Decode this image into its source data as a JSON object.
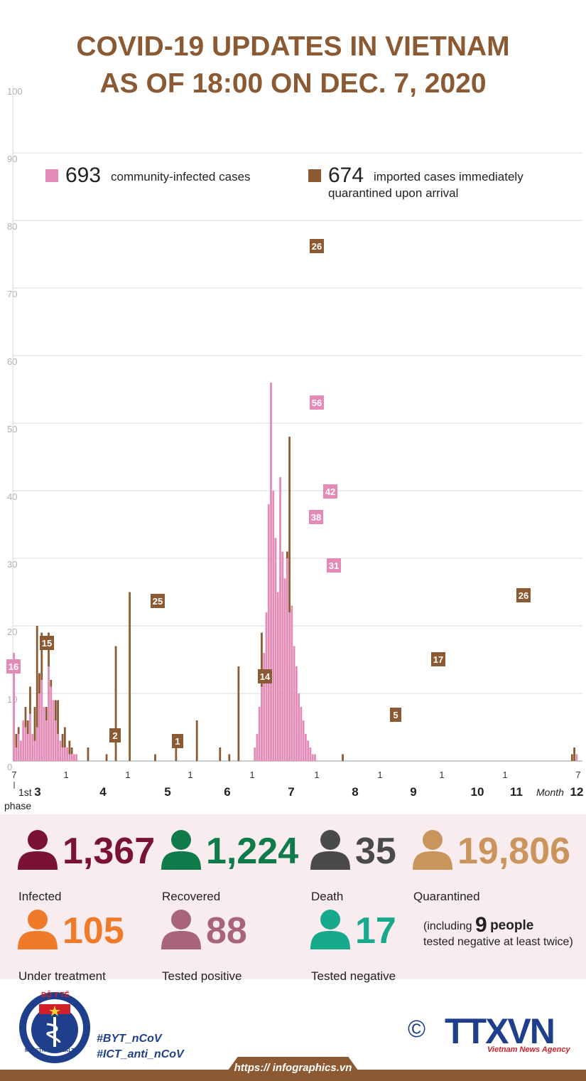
{
  "title_line1": "COVID-19 UPDATES IN VIETNAM",
  "title_line2": "AS OF 18:00 ON DEC. 7, 2020",
  "colors": {
    "community": "#e48ab7",
    "imported": "#8b5a33",
    "title": "#8b5a33"
  },
  "chart_data": {
    "type": "bar",
    "ylim": [
      0,
      100
    ],
    "yticks": [
      "0",
      "10",
      "20",
      "30",
      "40",
      "50",
      "60",
      "70",
      "80",
      "90",
      "100"
    ],
    "legend": [
      {
        "count": "693",
        "text": "community-infected cases",
        "color": "#e48ab7"
      },
      {
        "count": "674",
        "text_line1": "imported cases immediately",
        "text_line2": "quarantined upon arrival",
        "color": "#8b5a33"
      }
    ],
    "day_ticks": [
      "7",
      "1",
      "1",
      "1",
      "1",
      "1",
      "1",
      "1",
      "1",
      "7"
    ],
    "months": [
      "3",
      "4",
      "5",
      "6",
      "7",
      "8",
      "9",
      "10",
      "11",
      "12"
    ],
    "first_phase_line1": "1st",
    "first_phase_line2": "phase",
    "month_label": "Month",
    "annotations": [
      {
        "label": "16",
        "series": "community"
      },
      {
        "label": "15",
        "series": "imported"
      },
      {
        "label": "2",
        "series": "imported"
      },
      {
        "label": "25",
        "series": "imported"
      },
      {
        "label": "1",
        "series": "imported"
      },
      {
        "label": "14",
        "series": "imported"
      },
      {
        "label": "26",
        "series": "imported"
      },
      {
        "label": "56",
        "series": "community"
      },
      {
        "label": "42",
        "series": "community"
      },
      {
        "label": "38",
        "series": "community"
      },
      {
        "label": "31",
        "series": "community"
      },
      {
        "label": "5",
        "series": "imported"
      },
      {
        "label": "17",
        "series": "imported"
      },
      {
        "label": "26",
        "series": "imported"
      }
    ],
    "series": [
      {
        "name": "community-infected cases",
        "color": "#e48ab7",
        "values": [
          16,
          2,
          4,
          3,
          6,
          5,
          4,
          7,
          4,
          3,
          5,
          10,
          12,
          8,
          6,
          14,
          11,
          9,
          6,
          4,
          3,
          2,
          2,
          2,
          1,
          1,
          1,
          1,
          0,
          0,
          0,
          0,
          0,
          0,
          0,
          0,
          0,
          0,
          0,
          0,
          0,
          0,
          0,
          0,
          0,
          0,
          0,
          0,
          0,
          0,
          0,
          0,
          0,
          0,
          0,
          0,
          0,
          0,
          0,
          0,
          0,
          0,
          0,
          0,
          0,
          0,
          0,
          0,
          0,
          0,
          0,
          0,
          0,
          0,
          0,
          0,
          0,
          0,
          0,
          0,
          0,
          0,
          0,
          0,
          0,
          0,
          0,
          0,
          0,
          0,
          0,
          0,
          0,
          0,
          0,
          0,
          0,
          0,
          0,
          0,
          0,
          0,
          0,
          0,
          2,
          4,
          8,
          11,
          16,
          22,
          38,
          56,
          40,
          33,
          25,
          42,
          31,
          27,
          30,
          22,
          23,
          17,
          14,
          10,
          8,
          6,
          4,
          3,
          2,
          1,
          1,
          0,
          0,
          0,
          0,
          0,
          0,
          0,
          0,
          0,
          0,
          0,
          0,
          0,
          0,
          0,
          0,
          0,
          0,
          0,
          0,
          0,
          0,
          0,
          0,
          0,
          0,
          0,
          0,
          0,
          0,
          0,
          0,
          0,
          0,
          0,
          0,
          0,
          0,
          0,
          0,
          0,
          0,
          0,
          0,
          0,
          0,
          0,
          0,
          0,
          0,
          0,
          0,
          0,
          0,
          0,
          0,
          0,
          0,
          0,
          0,
          0,
          0,
          0,
          0,
          0,
          0,
          0,
          0,
          0,
          0,
          0,
          0,
          0,
          0,
          0,
          0,
          0,
          0,
          0,
          0,
          0,
          0,
          0,
          0,
          0,
          0,
          0,
          0,
          0,
          0,
          0,
          0,
          0,
          0,
          0,
          0,
          0,
          0,
          0,
          0,
          0,
          0,
          0,
          0,
          0,
          0,
          0,
          0,
          0,
          0,
          0,
          0,
          1,
          0,
          0
        ]
      },
      {
        "name": "imported cases immediately quarantined upon arrival",
        "color": "#8b5a33",
        "values": [
          0,
          2,
          1,
          0,
          0,
          3,
          2,
          4,
          0,
          5,
          15,
          3,
          7,
          0,
          2,
          5,
          1,
          0,
          3,
          5,
          0,
          2,
          3,
          0,
          2,
          1,
          0,
          0,
          0,
          0,
          0,
          0,
          2,
          0,
          0,
          0,
          0,
          0,
          0,
          0,
          1,
          0,
          0,
          0,
          17,
          0,
          0,
          0,
          0,
          0,
          25,
          0,
          0,
          0,
          0,
          0,
          0,
          0,
          0,
          0,
          0,
          1,
          0,
          0,
          0,
          0,
          0,
          0,
          0,
          0,
          3,
          0,
          0,
          0,
          0,
          0,
          0,
          0,
          0,
          6,
          0,
          0,
          0,
          0,
          0,
          0,
          0,
          0,
          0,
          2,
          0,
          0,
          0,
          1,
          0,
          0,
          0,
          14,
          0,
          0,
          0,
          0,
          0,
          0,
          0,
          0,
          0,
          8,
          0,
          0,
          0,
          0,
          0,
          0,
          0,
          0,
          0,
          0,
          1,
          26,
          0,
          0,
          0,
          0,
          0,
          0,
          0,
          0,
          0,
          0,
          0,
          0,
          0,
          0,
          0,
          0,
          0,
          0,
          0,
          0,
          0,
          0,
          1,
          0,
          0,
          0,
          0,
          0,
          0,
          0,
          0,
          0,
          0,
          0,
          0,
          0,
          0,
          0,
          0,
          0,
          0,
          0,
          0,
          0,
          0,
          0,
          0,
          0,
          0,
          0,
          0,
          0,
          0,
          0,
          0,
          0,
          0,
          0,
          0,
          0,
          0,
          0,
          0,
          0,
          0,
          0,
          0,
          0,
          0,
          0,
          0,
          0,
          0,
          0,
          0,
          0,
          0,
          0,
          0,
          0,
          0,
          0,
          0,
          0,
          0,
          0,
          0,
          0,
          0,
          0,
          0,
          0,
          0,
          0,
          0,
          0,
          0,
          0,
          0,
          0,
          0,
          0,
          0,
          0,
          0,
          0,
          0,
          0,
          0,
          0,
          0,
          0,
          0,
          0,
          0,
          0,
          0,
          0,
          0,
          0,
          0,
          1,
          2
        ]
      }
    ]
  },
  "stats": [
    {
      "value": "1,367",
      "label": "Infected",
      "color": "#7a1236"
    },
    {
      "value": "1,224",
      "label": "Recovered",
      "color": "#0f7a4a"
    },
    {
      "value": "35",
      "label": "Death",
      "color": "#4a4a4a"
    },
    {
      "value": "19,806",
      "label": "Quarantined",
      "color": "#c9955c"
    },
    {
      "value": "105",
      "label": "Under treatment",
      "color": "#ee7a2a"
    },
    {
      "value": "88",
      "label": "Tested positive",
      "color": "#a8647a"
    },
    {
      "value": "17",
      "label": "Tested negative",
      "color": "#16a98c"
    }
  ],
  "note": {
    "prefix": "(including",
    "number": "9",
    "people": "people",
    "line2": "tested negative at least twice)"
  },
  "footer": {
    "logo_top": "BỘ Y TẾ",
    "logo_bottom": "MINISTRY OF HEALTH",
    "tag1": "#BYT_nCoV",
    "tag2": "#ICT_anti_nCoV",
    "copyright": "©",
    "agency": "TTXVN",
    "agency_sub": "Vietnam News Agency",
    "url": "https:// infographics.vn"
  }
}
